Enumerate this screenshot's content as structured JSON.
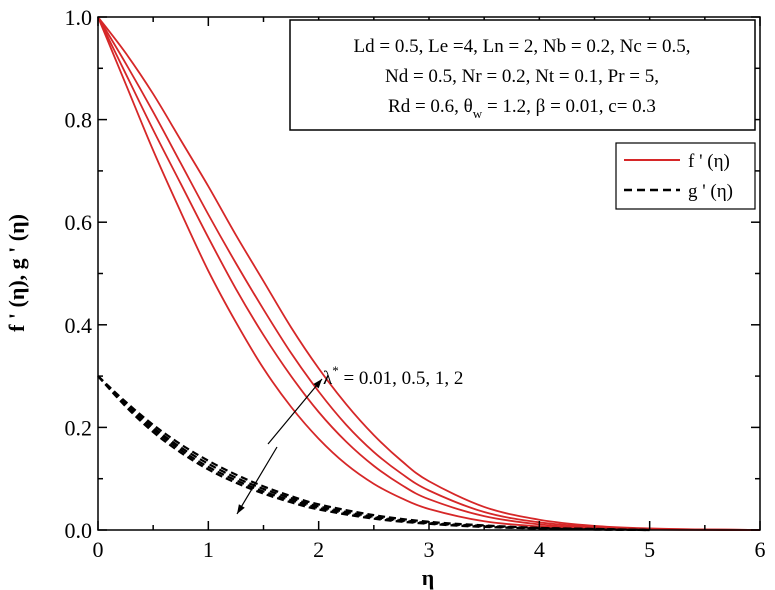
{
  "chart_data": {
    "type": "line",
    "xlabel": "η",
    "ylabel": "f ' (η), g ' (η)",
    "xlim": [
      0,
      6
    ],
    "ylim": [
      0,
      1.0
    ],
    "x_ticks": [
      "0",
      "1",
      "2",
      "3",
      "4",
      "5",
      "6"
    ],
    "y_ticks": [
      "0.0",
      "0.2",
      "0.4",
      "0.6",
      "0.8",
      "1.0"
    ],
    "grid": false,
    "legend_position": "top-right",
    "legend": [
      {
        "label": "f ' (η)",
        "style": "solid",
        "color": "#d62728"
      },
      {
        "label": "g ' (η)",
        "style": "dashed",
        "color": "#000000"
      }
    ],
    "parameters": {
      "line1": "Ld = 0.5, Le =4, Ln = 2, Nb = 0.2, Nc = 0.5,",
      "line2": "Nd = 0.5, Nr = 0.2, Nt = 0.1, Pr = 5,",
      "line3_a": "Rd = 0.6, θ",
      "line3_sub": "w",
      "line3_b": " = 1.2, β = 0.01, c= 0.3"
    },
    "annotation": {
      "lambda_symbol": "λ",
      "lambda_sup": "*",
      "values_text": " = 0.01, 0.5, 1, 2"
    },
    "series": [
      {
        "group": "f'",
        "color": "#d62728",
        "style": "solid",
        "x": [
          0,
          0.25,
          0.5,
          0.75,
          1.0,
          1.25,
          1.5,
          1.75,
          2.0,
          2.25,
          2.5,
          2.75,
          3.0,
          3.5,
          4.0,
          4.5,
          5.0,
          5.5,
          6.0
        ],
        "y": [
          1.0,
          0.93,
          0.85,
          0.76,
          0.67,
          0.575,
          0.485,
          0.395,
          0.315,
          0.245,
          0.185,
          0.135,
          0.095,
          0.045,
          0.02,
          0.008,
          0.003,
          0.001,
          0.0
        ]
      },
      {
        "group": "f'",
        "color": "#d62728",
        "style": "solid",
        "x": [
          0,
          0.25,
          0.5,
          0.75,
          1.0,
          1.25,
          1.5,
          1.75,
          2.0,
          2.25,
          2.5,
          2.75,
          3.0,
          3.5,
          4.0,
          4.5,
          5.0,
          5.5,
          6.0
        ],
        "y": [
          1.0,
          0.91,
          0.815,
          0.715,
          0.615,
          0.52,
          0.43,
          0.345,
          0.27,
          0.205,
          0.152,
          0.11,
          0.077,
          0.035,
          0.015,
          0.006,
          0.002,
          0.001,
          0.0
        ]
      },
      {
        "group": "f'",
        "color": "#d62728",
        "style": "solid",
        "x": [
          0,
          0.25,
          0.5,
          0.75,
          1.0,
          1.25,
          1.5,
          1.75,
          2.0,
          2.25,
          2.5,
          2.75,
          3.0,
          3.5,
          4.0,
          4.5,
          5.0,
          5.5,
          6.0
        ],
        "y": [
          1.0,
          0.89,
          0.78,
          0.675,
          0.57,
          0.47,
          0.38,
          0.3,
          0.23,
          0.172,
          0.125,
          0.088,
          0.06,
          0.027,
          0.011,
          0.004,
          0.002,
          0.001,
          0.0
        ]
      },
      {
        "group": "f'",
        "color": "#d62728",
        "style": "solid",
        "x": [
          0,
          0.25,
          0.5,
          0.75,
          1.0,
          1.25,
          1.5,
          1.75,
          2.0,
          2.25,
          2.5,
          2.75,
          3.0,
          3.5,
          4.0,
          4.5,
          5.0,
          5.5,
          6.0
        ],
        "y": [
          1.0,
          0.87,
          0.74,
          0.62,
          0.505,
          0.405,
          0.315,
          0.24,
          0.178,
          0.128,
          0.09,
          0.062,
          0.041,
          0.017,
          0.007,
          0.003,
          0.001,
          0.0,
          0.0
        ]
      },
      {
        "group": "g'",
        "color": "#000000",
        "style": "dashed",
        "x": [
          0,
          0.25,
          0.5,
          0.75,
          1.0,
          1.25,
          1.5,
          1.75,
          2.0,
          2.5,
          3.0,
          3.5,
          4.0,
          4.5,
          5.0
        ],
        "y": [
          0.3,
          0.25,
          0.205,
          0.167,
          0.135,
          0.108,
          0.085,
          0.066,
          0.05,
          0.029,
          0.016,
          0.009,
          0.004,
          0.002,
          0.0
        ]
      },
      {
        "group": "g'",
        "color": "#000000",
        "style": "dashed",
        "x": [
          0,
          0.25,
          0.5,
          0.75,
          1.0,
          1.25,
          1.5,
          1.75,
          2.0,
          2.5,
          3.0,
          3.5,
          4.0,
          4.5,
          5.0
        ],
        "y": [
          0.3,
          0.247,
          0.2,
          0.161,
          0.129,
          0.102,
          0.08,
          0.062,
          0.046,
          0.026,
          0.014,
          0.008,
          0.004,
          0.002,
          0.0
        ]
      },
      {
        "group": "g'",
        "color": "#000000",
        "style": "dashed",
        "x": [
          0,
          0.25,
          0.5,
          0.75,
          1.0,
          1.25,
          1.5,
          1.75,
          2.0,
          2.5,
          3.0,
          3.5,
          4.0,
          4.5,
          5.0
        ],
        "y": [
          0.3,
          0.244,
          0.196,
          0.156,
          0.123,
          0.097,
          0.075,
          0.058,
          0.043,
          0.024,
          0.013,
          0.007,
          0.003,
          0.001,
          0.0
        ]
      },
      {
        "group": "g'",
        "color": "#000000",
        "style": "dashed",
        "x": [
          0,
          0.25,
          0.5,
          0.75,
          1.0,
          1.25,
          1.5,
          1.75,
          2.0,
          2.5,
          3.0,
          3.5,
          4.0,
          4.5,
          5.0
        ],
        "y": [
          0.3,
          0.241,
          0.191,
          0.151,
          0.118,
          0.092,
          0.071,
          0.054,
          0.04,
          0.022,
          0.012,
          0.006,
          0.003,
          0.001,
          0.0
        ]
      }
    ]
  }
}
